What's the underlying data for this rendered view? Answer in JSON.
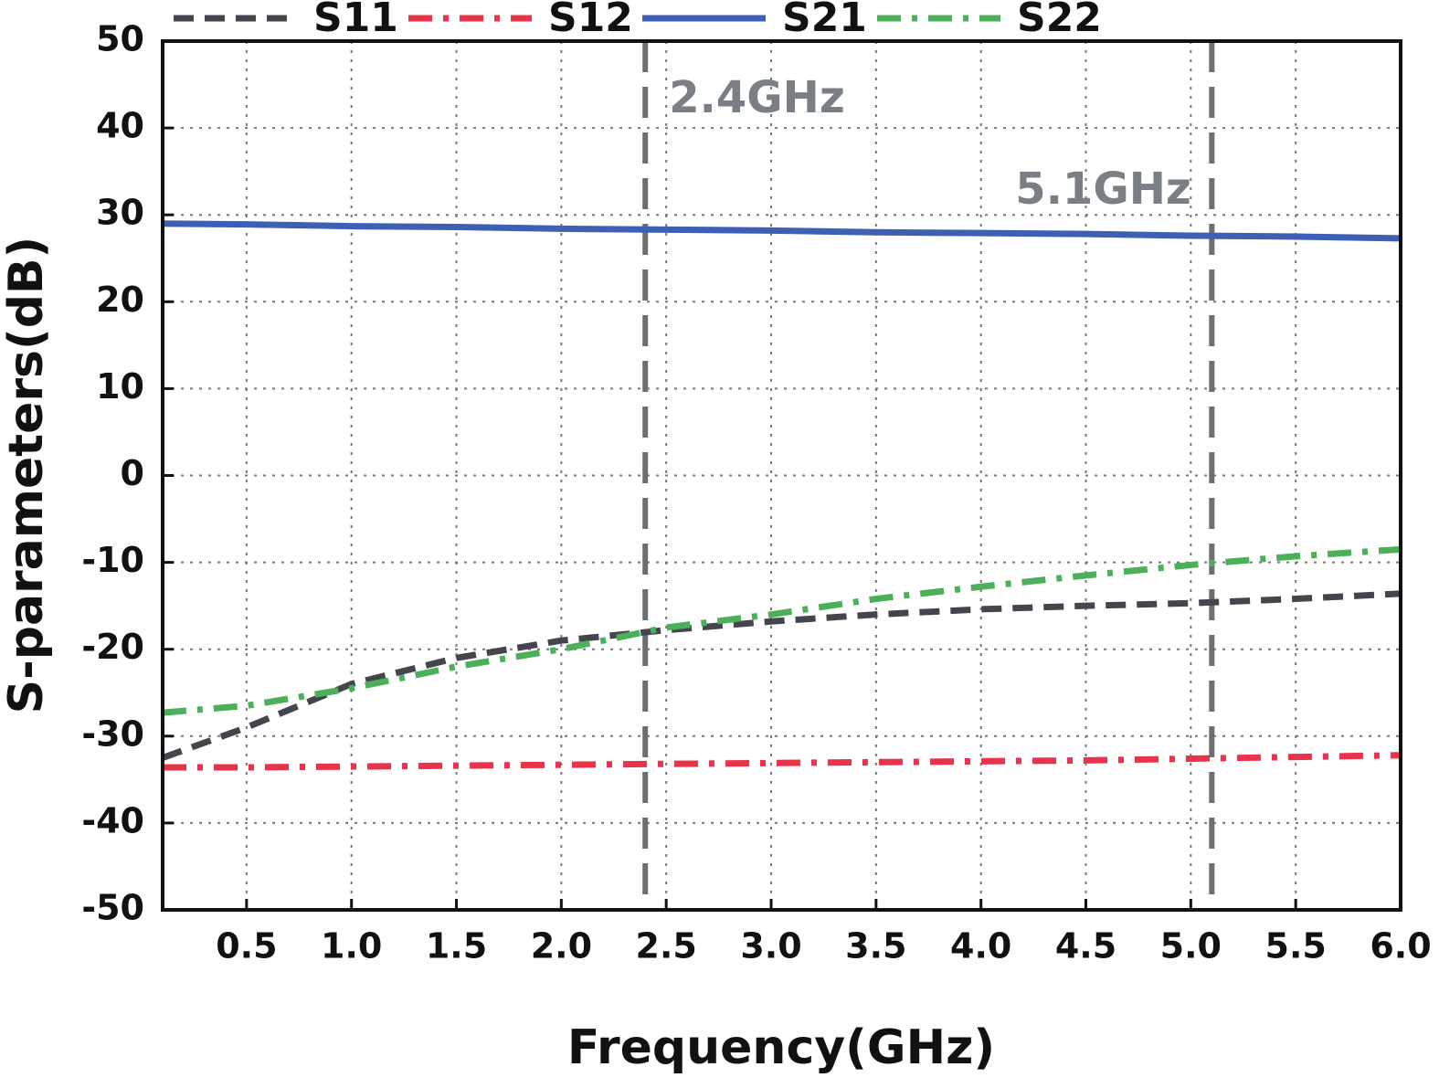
{
  "chart_data": {
    "type": "line",
    "xlabel": "Frequency(GHz)",
    "ylabel": "S-parameters(dB)",
    "x": [
      0.1,
      0.5,
      1.0,
      1.5,
      2.0,
      2.5,
      3.0,
      3.5,
      4.0,
      4.5,
      5.0,
      5.5,
      6.0
    ],
    "series": [
      {
        "name": "S11",
        "color": "#45454d",
        "style": "dashed",
        "values": [
          -32.5,
          -29,
          -24,
          -21,
          -19,
          -17.8,
          -16.8,
          -16,
          -15.4,
          -15,
          -14.7,
          -14.2,
          -13.6
        ]
      },
      {
        "name": "S12",
        "color": "#e8334a",
        "style": "dashdot",
        "values": [
          -33.6,
          -33.6,
          -33.5,
          -33.4,
          -33.3,
          -33.2,
          -33.1,
          -33,
          -32.9,
          -32.8,
          -32.6,
          -32.4,
          -32.2
        ]
      },
      {
        "name": "S21",
        "color": "#3d5fb5",
        "style": "solid",
        "values": [
          29,
          28.9,
          28.7,
          28.6,
          28.4,
          28.3,
          28.2,
          28.0,
          27.9,
          27.8,
          27.6,
          27.5,
          27.3
        ]
      },
      {
        "name": "S22",
        "color": "#4caf5a",
        "style": "dashdot",
        "values": [
          -27.3,
          -26.5,
          -24.5,
          -22,
          -20,
          -17.5,
          -16,
          -14.2,
          -12.8,
          -11.5,
          -10.3,
          -9.3,
          -8.5
        ]
      }
    ],
    "annotations": [
      {
        "x": 2.4,
        "text": "2.4GHz"
      },
      {
        "x": 5.1,
        "text": "5.1GHz"
      }
    ],
    "xlim": [
      0.1,
      6.0
    ],
    "xticks": [
      0.5,
      {
        "value": 1,
        "label": "1.0"
      },
      1.5,
      {
        "value": 2,
        "label": "2.0"
      },
      2.5,
      {
        "value": 3,
        "label": "3.0"
      },
      3.5,
      {
        "value": 4,
        "label": "4.0"
      },
      4.5,
      {
        "value": 5,
        "label": "5.0"
      },
      5.5,
      {
        "value": 6,
        "label": "6.0"
      }
    ],
    "ylim": [
      -50,
      50
    ],
    "yticks": [
      -50,
      -40,
      -30,
      -20,
      -10,
      0,
      10,
      20,
      30,
      40,
      50
    ],
    "grid": true
  }
}
